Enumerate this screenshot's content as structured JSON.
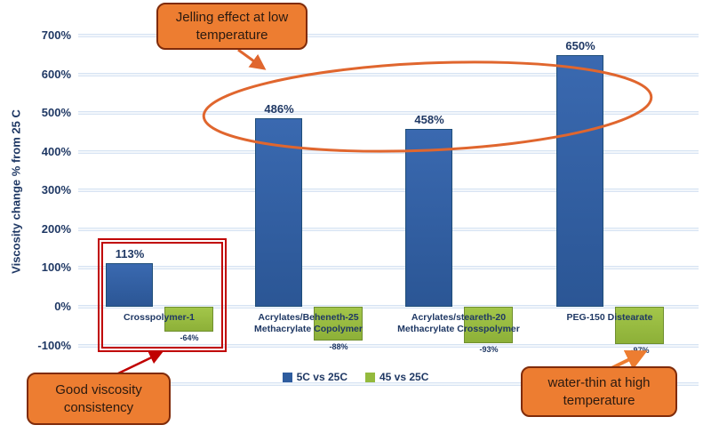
{
  "chart_data": {
    "type": "bar",
    "title": "",
    "ylabel": "Viscosity change % from 25 C",
    "ylim": [
      -200,
      700
    ],
    "ytick_step": 100,
    "ytick_suffix": "%",
    "grid": true,
    "legend_position": "bottom-center",
    "categories": [
      {
        "lines": [
          "Crosspolymer-1"
        ]
      },
      {
        "lines": [
          "Acrylates/Beheneth-25",
          "Methacrylate Copolymer"
        ]
      },
      {
        "lines": [
          "Acrylates/steareth-20",
          "Methacrylate Crosspolymer"
        ]
      },
      {
        "lines": [
          "PEG-150 Distearate"
        ]
      }
    ],
    "series": [
      {
        "name": "5C vs 25C",
        "color": "#2e5c9e",
        "values": [
          113,
          486,
          458,
          650
        ],
        "labels": [
          "113%",
          "486%",
          "458%",
          "650%"
        ]
      },
      {
        "name": "45 vs 25C",
        "color": "#94ba3d",
        "values": [
          -64,
          -88,
          -93,
          -97
        ],
        "labels": [
          "-64%",
          "-88%",
          "-93%",
          "-97%"
        ]
      }
    ]
  },
  "annotations": {
    "jelling": {
      "text": "Jelling effect at low temperature"
    },
    "good_viscosity": {
      "text": "Good viscosity consistency"
    },
    "water_thin": {
      "text": "water-thin at high temperature"
    }
  },
  "colors": {
    "bar_blue": "#2e5c9e",
    "bar_green": "#94ba3d",
    "axis_text": "#1f3864",
    "callout_fill": "#ed7d31",
    "callout_border": "#7f2b0a",
    "ellipse_stroke": "#e0662e",
    "highlight_rect": "#c00000"
  }
}
